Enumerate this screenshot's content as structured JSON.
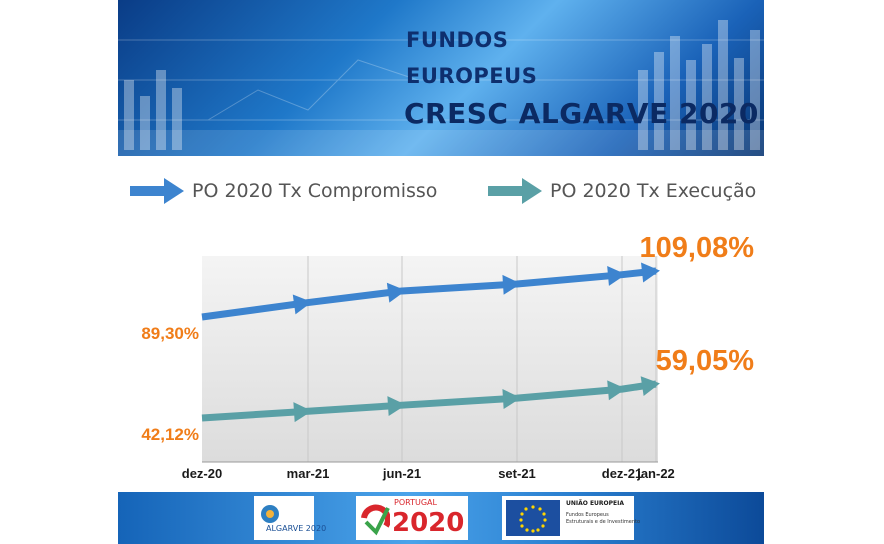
{
  "header": {
    "line1": "FUNDOS",
    "line2": "EUROPEUS",
    "line3": "CRESC ALGARVE 2020"
  },
  "legend": [
    {
      "label": "PO 2020 Tx Compromisso",
      "color": "#3d84cf"
    },
    {
      "label": "PO 2020 Tx Execução",
      "color": "#5aa0a6"
    }
  ],
  "chart_data": {
    "type": "line",
    "categories": [
      "dez-20",
      "mar-21",
      "jun-21",
      "set-21",
      "dez-21",
      "jan-22"
    ],
    "series": [
      {
        "name": "PO 2020 Tx Compromisso",
        "values": [
          89.3,
          95.5,
          100.5,
          103.5,
          107.5,
          109.08
        ],
        "color": "#3d84cf"
      },
      {
        "name": "PO 2020 Tx Execução",
        "values": [
          42.12,
          45.5,
          48.5,
          52.0,
          56.5,
          59.05
        ],
        "color": "#5aa0a6"
      }
    ],
    "start_labels": [
      "89,30%",
      "42,12%"
    ],
    "end_labels": [
      "109,08%",
      "59,05%"
    ],
    "label_color": "#f07d19",
    "grid": true
  },
  "footer": {
    "algarve_logo": "ALGARVE 2020",
    "portugal_logo_top": "PORTUGAL",
    "portugal_logo_year": "2020",
    "eu_logo_title": "UNIÃO EUROPEIA",
    "eu_logo_line1": "Fundos Europeus",
    "eu_logo_line2": "Estruturais e de Investimento"
  }
}
